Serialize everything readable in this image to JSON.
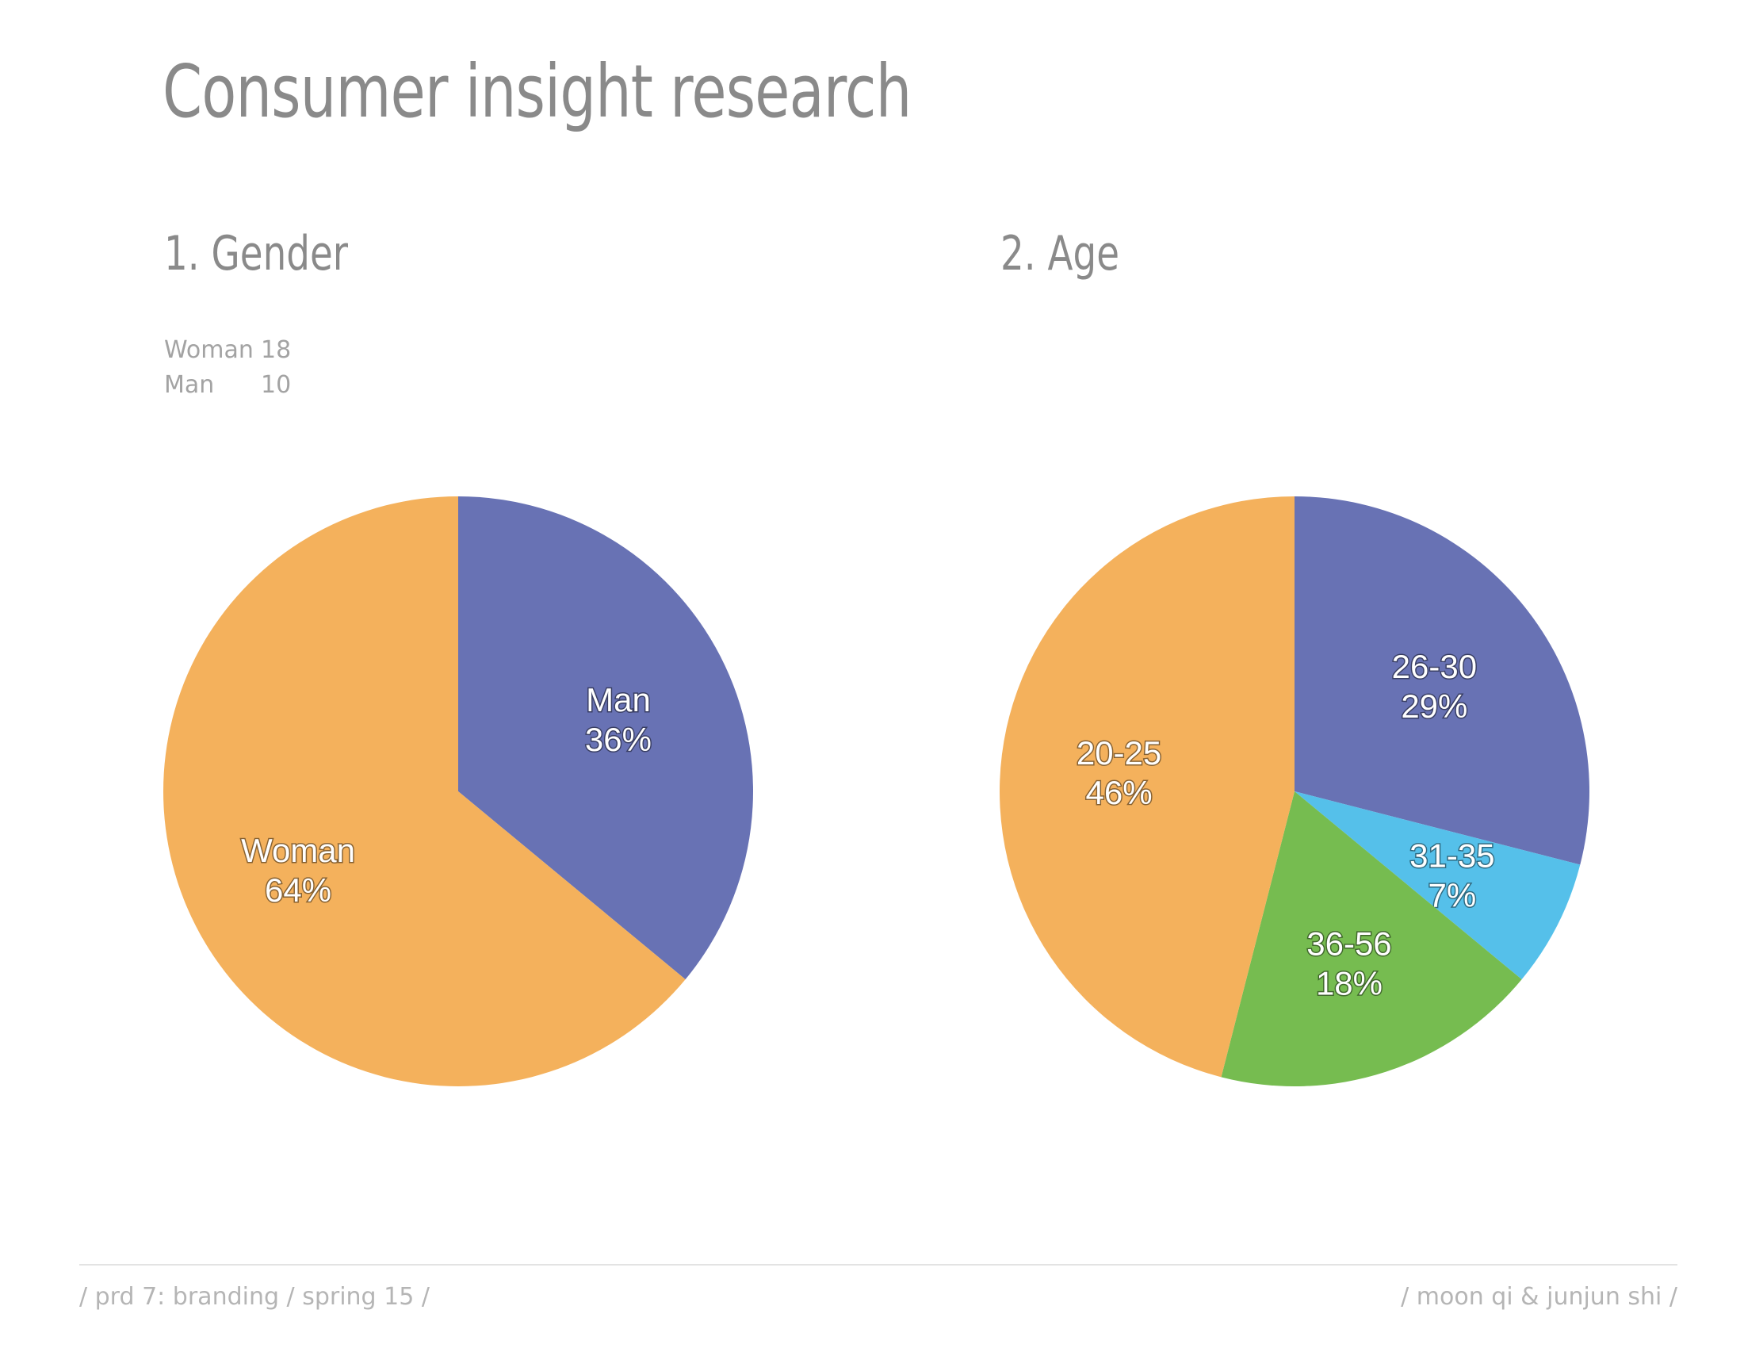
{
  "title": "Consumer insight research",
  "gender": {
    "heading": "1. Gender",
    "counts": [
      {
        "label": "Woman",
        "value": "18"
      },
      {
        "label": "Man",
        "value": "10"
      }
    ]
  },
  "age": {
    "heading": "2. Age"
  },
  "footer": {
    "left": "/ prd 7: branding / spring 15 /",
    "right": "/ moon qi & junjun shi /"
  },
  "chart_data": [
    {
      "type": "pie",
      "title": "1. Gender",
      "slices": [
        {
          "label": "Man",
          "value": 36,
          "pct_label": "36%",
          "color": "#6872b4"
        },
        {
          "label": "Woman",
          "value": 64,
          "pct_label": "64%",
          "color": "#f4b15c"
        }
      ]
    },
    {
      "type": "pie",
      "title": "2. Age",
      "slices": [
        {
          "label": "26-30",
          "value": 29,
          "pct_label": "29%",
          "color": "#6872b4"
        },
        {
          "label": "31-35",
          "value": 7,
          "pct_label": "7%",
          "color": "#55c0ea"
        },
        {
          "label": "36-56",
          "value": 18,
          "pct_label": "18%",
          "color": "#76bc50"
        },
        {
          "label": "20-25",
          "value": 46,
          "pct_label": "46%",
          "color": "#f4b15c"
        }
      ]
    }
  ]
}
